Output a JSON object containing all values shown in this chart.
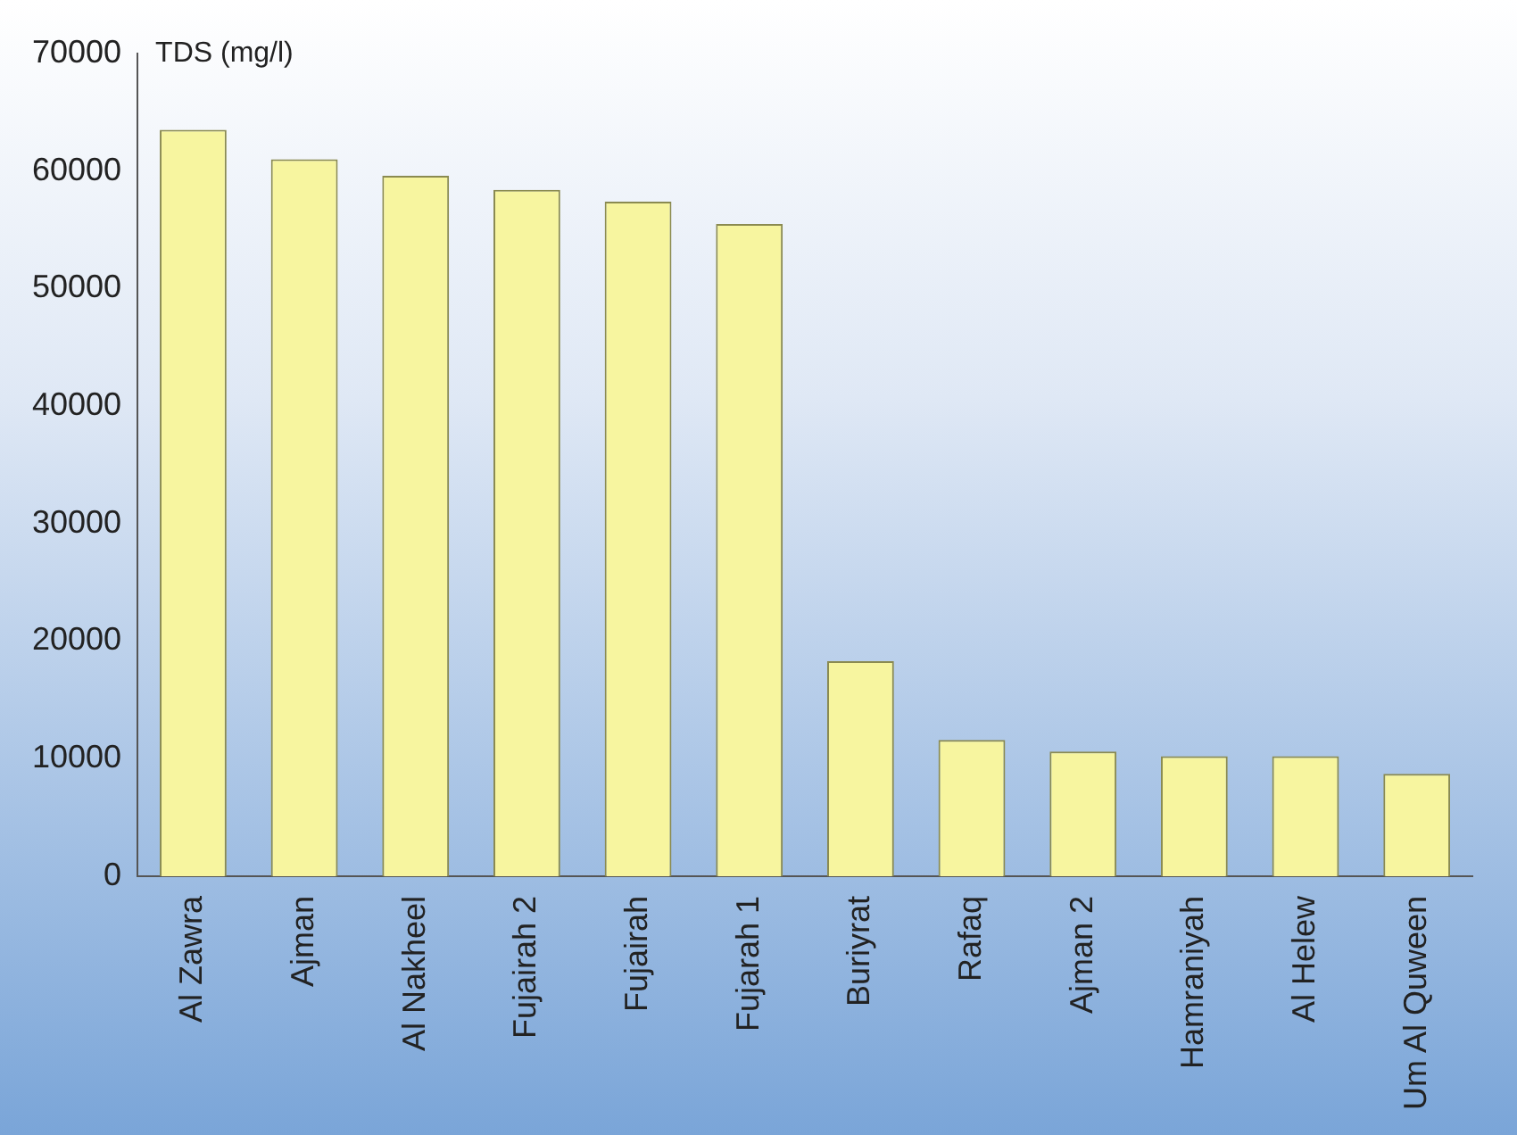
{
  "chart_data": {
    "type": "bar",
    "ylabel": "TDS (mg/l)",
    "categories": [
      "Al Zawra",
      "Ajman",
      "Al Nakheel",
      "Fujairah 2",
      "Fujairah",
      "Fujarah 1",
      "Buriyrat",
      "Rafaq",
      "Ajman 2",
      "Hamraniyah",
      "Al Helew",
      "Um Al Quween"
    ],
    "values": [
      63500,
      61000,
      59600,
      58400,
      57400,
      55500,
      18300,
      11600,
      10600,
      10200,
      10200,
      8700
    ],
    "color": "#f7f59f",
    "ylim": [
      0,
      70000
    ],
    "yticks": [
      0,
      10000,
      20000,
      30000,
      40000,
      50000,
      60000,
      70000
    ],
    "grid": false,
    "legend": false
  }
}
